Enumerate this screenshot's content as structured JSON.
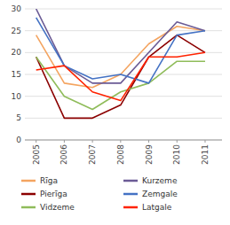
{
  "chart_data": {
    "type": "line",
    "x": [
      2005,
      2006,
      2007,
      2008,
      2009,
      2010,
      2011
    ],
    "series": [
      {
        "name": "Rīga",
        "color": "#F4A460",
        "values": [
          24,
          13,
          12,
          15,
          22,
          26,
          25
        ]
      },
      {
        "name": "Pierīga",
        "color": "#8B0000",
        "values": [
          19,
          5,
          5,
          8,
          19,
          24,
          20
        ]
      },
      {
        "name": "Vidzeme",
        "color": "#8FBC5A",
        "values": [
          19,
          10,
          7,
          11,
          13,
          18,
          18
        ]
      },
      {
        "name": "Kurzeme",
        "color": "#6B5B95",
        "values": [
          30,
          17,
          13,
          13,
          20,
          27,
          25
        ]
      },
      {
        "name": "Zemgale",
        "color": "#4472C4",
        "values": [
          28,
          17,
          14,
          15,
          13,
          24,
          25
        ]
      },
      {
        "name": "Latgale",
        "color": "#FF2200",
        "values": [
          16,
          17,
          11,
          9,
          19,
          19,
          20
        ]
      }
    ],
    "xlim": [
      2004.6,
      2011.6
    ],
    "xticks": [
      2005,
      2006,
      2007,
      2008,
      2009,
      2010,
      2011
    ],
    "ylim": [
      0,
      30
    ],
    "yticks": [
      0,
      5,
      10,
      15,
      20,
      25,
      30
    ],
    "grid": true,
    "legend": "bottom"
  }
}
